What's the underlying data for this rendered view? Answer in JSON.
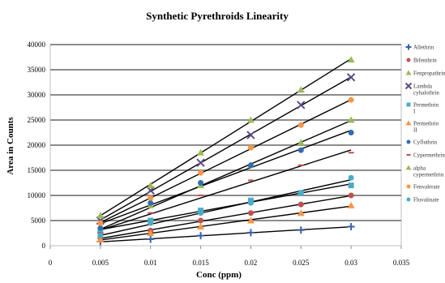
{
  "chart_data": {
    "type": "scatter",
    "title": "Synthetic Pyrethroids Linearity",
    "xlabel": "Conc (ppm)",
    "ylabel": "Area in Counts",
    "xlim": [
      0,
      0.035
    ],
    "ylim": [
      0,
      40000
    ],
    "x_ticks": [
      "0",
      "0.005",
      "0.01",
      "0.015",
      "0.02",
      "0.025",
      "0.03",
      "0.035"
    ],
    "y_ticks": [
      "0",
      "5000",
      "10000",
      "15000",
      "20000",
      "25000",
      "30000",
      "35000",
      "40000"
    ],
    "grid": "horizontal major gridlines",
    "trendlines": true,
    "legend_position": "right",
    "x": [
      0.005,
      0.01,
      0.015,
      0.02,
      0.025,
      0.03
    ],
    "series": [
      {
        "name": "Allethrin",
        "marker": "cross",
        "color": "#3b5fa8",
        "values": [
          800,
          1300,
          2000,
          2600,
          3100,
          3800
        ]
      },
      {
        "name": "Bifenthrin",
        "marker": "circle",
        "color": "#c0504d",
        "values": [
          1500,
          3000,
          5000,
          6500,
          8200,
          10000
        ]
      },
      {
        "name": "Fenpropathrin",
        "marker": "triangle",
        "color": "#9bbb59",
        "values": [
          3000,
          8000,
          12000,
          16000,
          20500,
          25000
        ]
      },
      {
        "name": "Lambda cyhalothrin",
        "marker": "x",
        "color": "#5e4b8b",
        "values": [
          5000,
          11000,
          16500,
          22000,
          28000,
          33500
        ]
      },
      {
        "name": "Permethrin I",
        "marker": "square",
        "color": "#4bacc6",
        "values": [
          3000,
          5000,
          7000,
          9000,
          10500,
          12000
        ]
      },
      {
        "name": "Permethrin II",
        "marker": "triangle",
        "color": "#f79646",
        "values": [
          1200,
          2500,
          3800,
          5000,
          6500,
          8000
        ]
      },
      {
        "name": "Cyfluthrin",
        "marker": "circle",
        "color": "#2f6db5",
        "values": [
          3500,
          8500,
          12500,
          16000,
          19000,
          22500
        ]
      },
      {
        "name": "Cypermethrin",
        "marker": "dash",
        "color": "#c0504d",
        "values": [
          2500,
          6500,
          10000,
          13000,
          16000,
          18500
        ]
      },
      {
        "name": "alpha cypermethrin",
        "marker": "triangle",
        "color": "#9bbb59",
        "values": [
          6000,
          12000,
          18500,
          25000,
          31000,
          37000
        ]
      },
      {
        "name": "Fenvalerate",
        "marker": "circle",
        "color": "#f79646",
        "values": [
          4500,
          9500,
          14500,
          19500,
          24000,
          29000
        ]
      },
      {
        "name": "Fluvalinate",
        "marker": "circle",
        "color": "#4bacc6",
        "values": [
          2000,
          4500,
          6500,
          8500,
          10500,
          13500
        ]
      }
    ]
  }
}
